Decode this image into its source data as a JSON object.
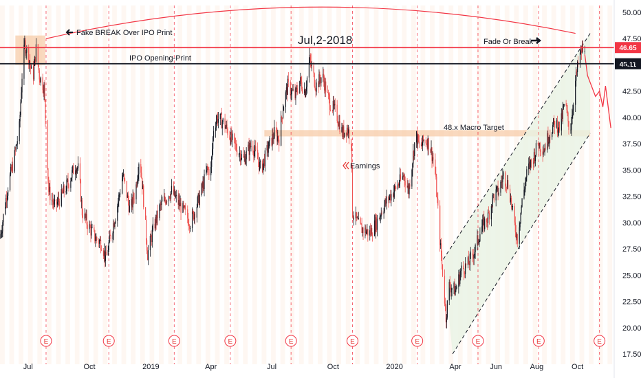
{
  "chart_data": {
    "type": "candlestick",
    "title": "",
    "xlabel": "",
    "ylabel": "",
    "ylim": [
      17.5,
      51.0
    ],
    "y_ticks": [
      17.5,
      20.0,
      22.5,
      25.0,
      27.5,
      30.0,
      32.5,
      35.0,
      37.5,
      40.0,
      42.5,
      45.0,
      47.5,
      50.0
    ],
    "y_tick_labels": [
      "17.50",
      "20.00",
      "22.50",
      "25.00",
      "27.50",
      "30.00",
      "32.50",
      "35.00",
      "37.50",
      "40.00",
      "42.50",
      "45.00",
      "47.50",
      "50.00"
    ],
    "x_range": [
      "2018-05-20",
      "2020-11-25"
    ],
    "x_ticks": [
      {
        "date": "2018-07-01",
        "label": "Jul"
      },
      {
        "date": "2018-10-01",
        "label": "Oct"
      },
      {
        "date": "2019-01-01",
        "label": "2019"
      },
      {
        "date": "2019-04-01",
        "label": "Apr"
      },
      {
        "date": "2019-07-01",
        "label": "Jul"
      },
      {
        "date": "2019-10-01",
        "label": "Oct"
      },
      {
        "date": "2020-01-01",
        "label": "2020"
      },
      {
        "date": "2020-04-01",
        "label": "Apr"
      },
      {
        "date": "2020-06-01",
        "label": "Jun"
      },
      {
        "date": "2020-08-01",
        "label": "Aug"
      },
      {
        "date": "2020-10-01",
        "label": "Oct"
      }
    ],
    "series": [
      {
        "type": "close_path",
        "points": [
          [
            "2018-05-20",
            28.5
          ],
          [
            "2018-06-01",
            33.5
          ],
          [
            "2018-06-10",
            36.0
          ],
          [
            "2018-06-18",
            39.0
          ],
          [
            "2018-06-22",
            44.0
          ],
          [
            "2018-06-26",
            47.0
          ],
          [
            "2018-07-03",
            45.5
          ],
          [
            "2018-07-08",
            43.5
          ],
          [
            "2018-07-13",
            46.5
          ],
          [
            "2018-07-18",
            44.0
          ],
          [
            "2018-07-25",
            42.8
          ],
          [
            "2018-07-28",
            38.5
          ],
          [
            "2018-08-01",
            33.0
          ],
          [
            "2018-08-10",
            31.5
          ],
          [
            "2018-08-20",
            32.5
          ],
          [
            "2018-09-01",
            34.0
          ],
          [
            "2018-09-10",
            35.5
          ],
          [
            "2018-09-15",
            35.0
          ],
          [
            "2018-09-20",
            31.0
          ],
          [
            "2018-10-01",
            29.5
          ],
          [
            "2018-10-10",
            28.5
          ],
          [
            "2018-10-20",
            28.0
          ],
          [
            "2018-10-25",
            26.5
          ],
          [
            "2018-11-01",
            28.5
          ],
          [
            "2018-11-10",
            31.0
          ],
          [
            "2018-11-20",
            34.5
          ],
          [
            "2018-11-25",
            33.0
          ],
          [
            "2018-12-01",
            31.0
          ],
          [
            "2018-12-10",
            33.5
          ],
          [
            "2018-12-15",
            36.5
          ],
          [
            "2018-12-20",
            33.0
          ],
          [
            "2018-12-27",
            27.0
          ],
          [
            "2019-01-05",
            29.5
          ],
          [
            "2019-01-15",
            31.5
          ],
          [
            "2019-01-25",
            32.5
          ],
          [
            "2019-02-01",
            33.0
          ],
          [
            "2019-02-10",
            32.0
          ],
          [
            "2019-02-20",
            31.0
          ],
          [
            "2019-03-01",
            30.0
          ],
          [
            "2019-03-10",
            31.5
          ],
          [
            "2019-03-20",
            33.5
          ],
          [
            "2019-03-26",
            35.0
          ],
          [
            "2019-04-01",
            35.0
          ],
          [
            "2019-04-05",
            39.0
          ],
          [
            "2019-04-10",
            40.0
          ],
          [
            "2019-04-20",
            39.5
          ],
          [
            "2019-05-01",
            38.0
          ],
          [
            "2019-05-10",
            37.0
          ],
          [
            "2019-05-20",
            36.0
          ],
          [
            "2019-06-01",
            37.5
          ],
          [
            "2019-06-10",
            36.0
          ],
          [
            "2019-06-15",
            35.0
          ],
          [
            "2019-06-25",
            37.0
          ],
          [
            "2019-07-05",
            38.5
          ],
          [
            "2019-07-12",
            38.0
          ],
          [
            "2019-07-18",
            41.0
          ],
          [
            "2019-07-25",
            43.0
          ],
          [
            "2019-08-05",
            42.0
          ],
          [
            "2019-08-12",
            43.5
          ],
          [
            "2019-08-20",
            42.5
          ],
          [
            "2019-08-27",
            45.5
          ],
          [
            "2019-09-05",
            43.0
          ],
          [
            "2019-09-15",
            44.0
          ],
          [
            "2019-09-25",
            41.5
          ],
          [
            "2019-10-05",
            40.5
          ],
          [
            "2019-10-15",
            38.5
          ],
          [
            "2019-10-22",
            39.0
          ],
          [
            "2019-10-28",
            38.0
          ],
          [
            "2019-10-30",
            31.0
          ],
          [
            "2019-11-10",
            29.5
          ],
          [
            "2019-11-25",
            29.0
          ],
          [
            "2019-12-05",
            30.0
          ],
          [
            "2019-12-15",
            31.5
          ],
          [
            "2019-12-25",
            32.5
          ],
          [
            "2020-01-05",
            33.5
          ],
          [
            "2020-01-15",
            34.5
          ],
          [
            "2020-01-22",
            33.0
          ],
          [
            "2020-01-28",
            36.0
          ],
          [
            "2020-02-02",
            38.5
          ],
          [
            "2020-02-08",
            37.0
          ],
          [
            "2020-02-15",
            38.0
          ],
          [
            "2020-02-22",
            37.5
          ],
          [
            "2020-03-01",
            35.5
          ],
          [
            "2020-03-05",
            32.0
          ],
          [
            "2020-03-10",
            27.5
          ],
          [
            "2020-03-14",
            24.5
          ],
          [
            "2020-03-18",
            21.0
          ],
          [
            "2020-03-23",
            24.0
          ],
          [
            "2020-04-01",
            23.5
          ],
          [
            "2020-04-10",
            25.5
          ],
          [
            "2020-04-20",
            26.0
          ],
          [
            "2020-05-01",
            27.5
          ],
          [
            "2020-05-10",
            29.5
          ],
          [
            "2020-05-20",
            30.5
          ],
          [
            "2020-05-28",
            32.5
          ],
          [
            "2020-06-05",
            33.0
          ],
          [
            "2020-06-12",
            34.5
          ],
          [
            "2020-06-20",
            33.5
          ],
          [
            "2020-06-28",
            30.0
          ],
          [
            "2020-07-03",
            28.5
          ],
          [
            "2020-07-10",
            32.0
          ],
          [
            "2020-07-18",
            35.0
          ],
          [
            "2020-07-26",
            36.0
          ],
          [
            "2020-08-03",
            37.5
          ],
          [
            "2020-08-12",
            37.0
          ],
          [
            "2020-08-20",
            38.5
          ],
          [
            "2020-08-28",
            39.5
          ],
          [
            "2020-09-05",
            39.0
          ],
          [
            "2020-09-12",
            41.5
          ],
          [
            "2020-09-20",
            38.5
          ],
          [
            "2020-09-27",
            43.0
          ],
          [
            "2020-10-03",
            45.5
          ],
          [
            "2020-10-08",
            46.5
          ],
          [
            "2020-10-12",
            46.0
          ]
        ]
      },
      {
        "type": "projection",
        "color": "#f23645",
        "points": [
          [
            "2020-10-12",
            46.0
          ],
          [
            "2020-10-16",
            44.0
          ],
          [
            "2020-10-22",
            43.0
          ],
          [
            "2020-10-28",
            42.0
          ],
          [
            "2020-11-03",
            42.5
          ],
          [
            "2020-11-08",
            41.0
          ],
          [
            "2020-11-12",
            43.0
          ],
          [
            "2020-11-16",
            41.0
          ],
          [
            "2020-11-20",
            39.0
          ]
        ]
      }
    ],
    "horizontal_lines": [
      {
        "value": 46.65,
        "color": "#f23645",
        "label": "46.65"
      },
      {
        "value": 45.11,
        "color": "#131722",
        "label": "45.11"
      }
    ],
    "zones": [
      {
        "from": "2018-06-12",
        "to": "2018-07-27",
        "low": 45.0,
        "high": 47.8
      },
      {
        "from": "2019-06-20",
        "to": "2020-10-20",
        "low": 38.2,
        "high": 38.8
      }
    ],
    "channel": {
      "upper": [
        [
          "2020-03-14",
          26.5
        ],
        [
          "2020-10-20",
          48.0
        ]
      ],
      "lower": [
        [
          "2020-03-28",
          17.5
        ],
        [
          "2020-10-20",
          38.5
        ]
      ]
    },
    "arc": {
      "start": [
        "2018-07-28",
        47.5
      ],
      "peak": [
        "2019-08-28",
        50.5
      ],
      "end": [
        "2020-09-28",
        48.0
      ]
    },
    "earnings_dates": [
      "2018-07-28",
      "2018-10-30",
      "2019-02-05",
      "2019-04-30",
      "2019-07-30",
      "2019-10-30",
      "2020-02-04",
      "2020-05-05",
      "2020-08-04",
      "2020-11-03"
    ],
    "earnings_badge": "E",
    "annotations": [
      {
        "key": "fake_break",
        "text": "Fake BREAK Over IPO Print"
      },
      {
        "key": "date_title",
        "text": "Jul,2-2018"
      },
      {
        "key": "fade_break",
        "text": "Fade Or Break ?"
      },
      {
        "key": "ipo_print",
        "text": "IPO Opening-Print"
      },
      {
        "key": "macro_target",
        "text": "48.x Macro Target"
      },
      {
        "key": "earnings",
        "text": "Earnings"
      }
    ],
    "colors": {
      "up": "#26a69a",
      "down": "#ef5350",
      "candle": "#131722",
      "red_line": "#f23645",
      "black_line": "#131722",
      "zone": "#f7c9a4",
      "channel_fill": "#e9f3e3",
      "earnings_line": "#f23645",
      "week_band": "#fdf1e7"
    },
    "grid": false,
    "legend": "none"
  }
}
